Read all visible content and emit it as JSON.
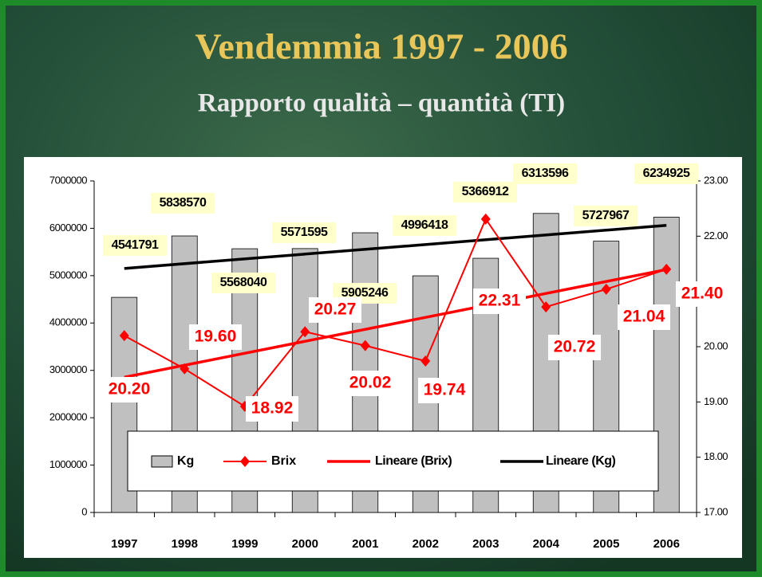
{
  "chart_data": {
    "type": "bar_line",
    "title": "Vendemmia 1997 - 2006",
    "subtitle": "Rapporto qualità – quantità (TI)",
    "categories": [
      "1997",
      "1998",
      "1999",
      "2000",
      "2001",
      "2002",
      "2003",
      "2004",
      "2005",
      "2006"
    ],
    "series": [
      {
        "name": "Kg",
        "type": "bar",
        "color": "#c0c0c0",
        "values": [
          4541791,
          5838570,
          5568040,
          5571595,
          5905246,
          4996418,
          5366912,
          6313596,
          5727967,
          6234925
        ],
        "trend": {
          "name": "Lineare (Kg)",
          "color": "#000000"
        }
      },
      {
        "name": "Brix",
        "type": "line",
        "axis": "y2",
        "color": "#ff0000",
        "values": [
          20.2,
          19.6,
          18.92,
          20.27,
          20.02,
          19.74,
          22.31,
          20.72,
          21.04,
          21.4
        ],
        "value_labels": [
          "20.20",
          "19.60",
          "18.92",
          "20.27",
          "20.02",
          "19.74",
          "22.31",
          "20.72",
          "21.04",
          "21.40"
        ],
        "trend": {
          "name": "Lineare (Brix)",
          "color": "#ff0000"
        }
      }
    ],
    "ylim": [
      0,
      7000000
    ],
    "yticks": [
      0,
      1000000,
      2000000,
      3000000,
      4000000,
      5000000,
      6000000,
      7000000
    ],
    "y2lim": [
      17,
      23
    ],
    "y2ticks": [
      {
        "value": 17,
        "label": "17.00"
      },
      {
        "value": 18,
        "label": "18.00"
      },
      {
        "value": 19,
        "label": "19.00"
      },
      {
        "value": 20,
        "label": "20.00"
      },
      {
        "value": 21,
        "label": "21.00"
      },
      {
        "value": 22,
        "label": "22.00"
      },
      {
        "value": 23,
        "label": "23.00"
      }
    ],
    "legend": "bottom"
  }
}
